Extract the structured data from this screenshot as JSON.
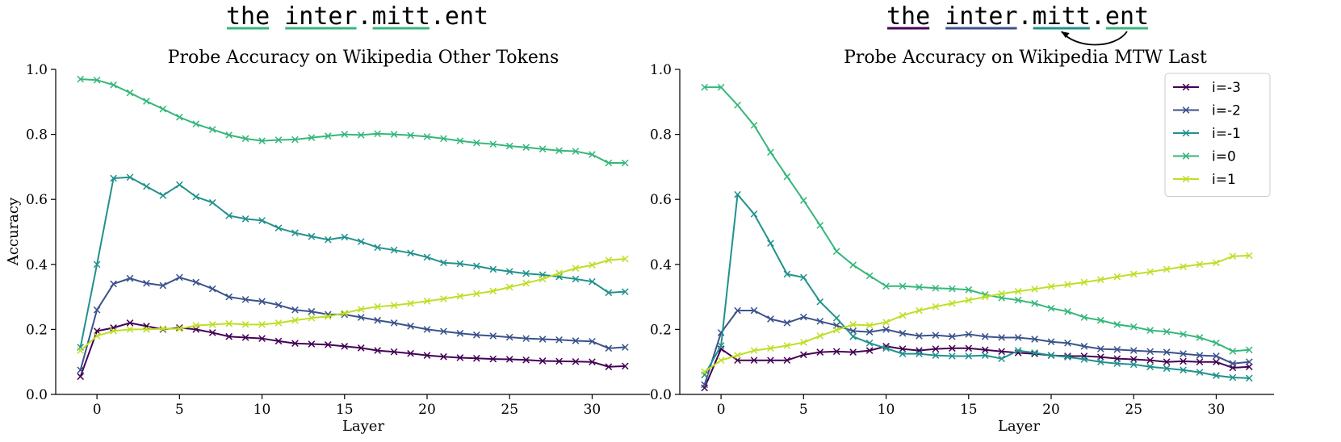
{
  "colors": {
    "i=-3": "#440154",
    "i=-2": "#3b528b",
    "i=-1": "#21918c",
    "i=0": "#35b779",
    "i=1": "#bddf26"
  },
  "token_headers": [
    {
      "tokens": [
        {
          "text": "the",
          "underline": "#35b779"
        },
        {
          "text": " ",
          "underline": null
        },
        {
          "text": "inter",
          "underline": "#35b779"
        },
        {
          "text": ".",
          "underline": null
        },
        {
          "text": "mitt",
          "underline": "#35b779"
        },
        {
          "text": ".",
          "underline": null
        },
        {
          "text": "ent",
          "underline": null
        }
      ],
      "arrow": false
    },
    {
      "tokens": [
        {
          "text": "the",
          "underline": "#440154"
        },
        {
          "text": " ",
          "underline": null
        },
        {
          "text": "inter",
          "underline": "#3b528b"
        },
        {
          "text": ".",
          "underline": null
        },
        {
          "text": "mitt",
          "underline": "#21918c"
        },
        {
          "text": ".",
          "underline": null
        },
        {
          "text": "ent",
          "underline": "#35b779"
        }
      ],
      "arrow": true
    }
  ],
  "chart_data": [
    {
      "type": "line",
      "title": "Probe Accuracy on Wikipedia Other Tokens",
      "xlabel": "Layer",
      "ylabel": "Accuracy",
      "xlim": [
        -2.5,
        33.5
      ],
      "ylim": [
        0.0,
        1.0
      ],
      "xticks": [
        0,
        5,
        10,
        15,
        20,
        25,
        30
      ],
      "yticks": [
        0.0,
        0.2,
        0.4,
        0.6,
        0.8,
        1.0
      ],
      "marker": "x",
      "legend": false,
      "x": [
        -1,
        0,
        1,
        2,
        3,
        4,
        5,
        6,
        7,
        8,
        9,
        10,
        11,
        12,
        13,
        14,
        15,
        16,
        17,
        18,
        19,
        20,
        21,
        22,
        23,
        24,
        25,
        26,
        27,
        28,
        29,
        30,
        31,
        32
      ],
      "series": [
        {
          "name": "i=-3",
          "color_key": "i=-3",
          "values": [
            0.055,
            0.195,
            0.205,
            0.22,
            0.21,
            0.2,
            0.205,
            0.2,
            0.19,
            0.178,
            0.175,
            0.172,
            0.164,
            0.157,
            0.155,
            0.153,
            0.148,
            0.143,
            0.135,
            0.131,
            0.126,
            0.12,
            0.116,
            0.113,
            0.111,
            0.109,
            0.108,
            0.106,
            0.103,
            0.102,
            0.101,
            0.1,
            0.085,
            0.087
          ]
        },
        {
          "name": "i=-2",
          "color_key": "i=-2",
          "values": [
            0.075,
            0.26,
            0.34,
            0.357,
            0.342,
            0.335,
            0.36,
            0.345,
            0.325,
            0.3,
            0.292,
            0.286,
            0.275,
            0.26,
            0.255,
            0.246,
            0.246,
            0.237,
            0.228,
            0.22,
            0.21,
            0.2,
            0.194,
            0.188,
            0.183,
            0.18,
            0.176,
            0.172,
            0.17,
            0.168,
            0.165,
            0.163,
            0.142,
            0.145
          ]
        },
        {
          "name": "i=-1",
          "color_key": "i=-1",
          "values": [
            0.145,
            0.4,
            0.665,
            0.668,
            0.64,
            0.612,
            0.645,
            0.608,
            0.59,
            0.55,
            0.54,
            0.535,
            0.512,
            0.497,
            0.486,
            0.476,
            0.484,
            0.47,
            0.452,
            0.444,
            0.435,
            0.422,
            0.405,
            0.402,
            0.395,
            0.385,
            0.378,
            0.372,
            0.368,
            0.362,
            0.355,
            0.347,
            0.313,
            0.316
          ]
        },
        {
          "name": "i=0",
          "color_key": "i=0",
          "values": [
            0.97,
            0.967,
            0.952,
            0.928,
            0.902,
            0.878,
            0.853,
            0.832,
            0.815,
            0.798,
            0.787,
            0.78,
            0.783,
            0.784,
            0.79,
            0.795,
            0.8,
            0.798,
            0.802,
            0.8,
            0.797,
            0.793,
            0.787,
            0.78,
            0.774,
            0.77,
            0.764,
            0.76,
            0.755,
            0.75,
            0.748,
            0.738,
            0.712,
            0.712
          ]
        },
        {
          "name": "i=1",
          "color_key": "i=1",
          "values": [
            0.135,
            0.18,
            0.195,
            0.2,
            0.2,
            0.202,
            0.202,
            0.212,
            0.215,
            0.218,
            0.215,
            0.215,
            0.22,
            0.228,
            0.235,
            0.24,
            0.25,
            0.262,
            0.27,
            0.274,
            0.28,
            0.287,
            0.294,
            0.302,
            0.31,
            0.318,
            0.33,
            0.342,
            0.355,
            0.373,
            0.388,
            0.398,
            0.413,
            0.417
          ]
        }
      ]
    },
    {
      "type": "line",
      "title": "Probe Accuracy on Wikipedia MTW Last",
      "xlabel": "Layer",
      "ylabel": "",
      "xlim": [
        -2.5,
        33.5
      ],
      "ylim": [
        0.0,
        1.0
      ],
      "xticks": [
        0,
        5,
        10,
        15,
        20,
        25,
        30
      ],
      "yticks": [
        0.0,
        0.2,
        0.4,
        0.6,
        0.8,
        1.0
      ],
      "marker": "x",
      "legend": true,
      "legend_position": "top-right",
      "x": [
        -1,
        0,
        1,
        2,
        3,
        4,
        5,
        6,
        7,
        8,
        9,
        10,
        11,
        12,
        13,
        14,
        15,
        16,
        17,
        18,
        19,
        20,
        21,
        22,
        23,
        24,
        25,
        26,
        27,
        28,
        29,
        30,
        31,
        32
      ],
      "series": [
        {
          "name": "i=-3",
          "color_key": "i=-3",
          "values": [
            0.02,
            0.14,
            0.105,
            0.105,
            0.105,
            0.105,
            0.122,
            0.13,
            0.132,
            0.13,
            0.135,
            0.148,
            0.14,
            0.135,
            0.14,
            0.142,
            0.142,
            0.137,
            0.132,
            0.128,
            0.125,
            0.12,
            0.118,
            0.118,
            0.115,
            0.11,
            0.108,
            0.105,
            0.1,
            0.102,
            0.1,
            0.1,
            0.082,
            0.085
          ]
        },
        {
          "name": "i=-2",
          "color_key": "i=-2",
          "values": [
            0.03,
            0.19,
            0.258,
            0.258,
            0.232,
            0.22,
            0.238,
            0.225,
            0.212,
            0.195,
            0.192,
            0.2,
            0.188,
            0.18,
            0.182,
            0.178,
            0.185,
            0.178,
            0.175,
            0.175,
            0.17,
            0.162,
            0.158,
            0.148,
            0.14,
            0.138,
            0.135,
            0.132,
            0.13,
            0.125,
            0.12,
            0.118,
            0.095,
            0.1
          ]
        },
        {
          "name": "i=-1",
          "color_key": "i=-1",
          "values": [
            0.06,
            0.15,
            0.615,
            0.555,
            0.465,
            0.37,
            0.36,
            0.285,
            0.235,
            0.178,
            0.158,
            0.142,
            0.125,
            0.125,
            0.12,
            0.118,
            0.118,
            0.12,
            0.11,
            0.135,
            0.128,
            0.12,
            0.115,
            0.108,
            0.1,
            0.095,
            0.092,
            0.085,
            0.08,
            0.075,
            0.068,
            0.058,
            0.052,
            0.05
          ]
        },
        {
          "name": "i=0",
          "color_key": "i=0",
          "values": [
            0.945,
            0.945,
            0.89,
            0.828,
            0.745,
            0.67,
            0.597,
            0.52,
            0.44,
            0.398,
            0.365,
            0.333,
            0.333,
            0.33,
            0.327,
            0.325,
            0.322,
            0.307,
            0.297,
            0.29,
            0.28,
            0.265,
            0.255,
            0.237,
            0.228,
            0.215,
            0.208,
            0.197,
            0.193,
            0.185,
            0.175,
            0.158,
            0.133,
            0.137
          ]
        },
        {
          "name": "i=1",
          "color_key": "i=1",
          "values": [
            0.07,
            0.105,
            0.12,
            0.135,
            0.142,
            0.15,
            0.16,
            0.18,
            0.198,
            0.215,
            0.212,
            0.222,
            0.243,
            0.258,
            0.27,
            0.28,
            0.29,
            0.3,
            0.31,
            0.317,
            0.324,
            0.332,
            0.338,
            0.345,
            0.353,
            0.362,
            0.37,
            0.377,
            0.385,
            0.393,
            0.4,
            0.405,
            0.425,
            0.427
          ]
        }
      ]
    }
  ]
}
